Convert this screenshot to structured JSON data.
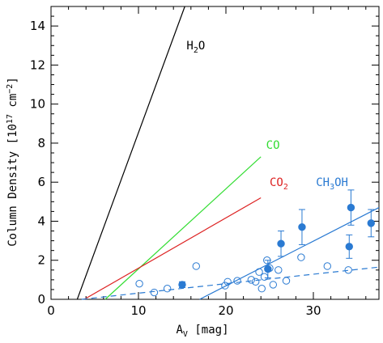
{
  "chart_data": {
    "type": "scatter",
    "xlabel": "A",
    "xlabel_sub": "V",
    "xlabel_unit": "[mag]",
    "ylabel": "Column Density [10",
    "ylabel_sup": "17",
    "ylabel_tail": " cm",
    "ylabel_sup2": "−2",
    "ylabel_close": "]",
    "xlim": [
      0,
      37.5
    ],
    "ylim": [
      0,
      15
    ],
    "x_ticks": [
      0,
      10,
      20,
      30
    ],
    "y_ticks": [
      0,
      2,
      4,
      6,
      8,
      10,
      12,
      14
    ],
    "grid": false,
    "colors": {
      "H2O": "#000000",
      "CO": "#33dd33",
      "CO2": "#dd2222",
      "CH3OH": "#2a7ad2"
    },
    "annotations": {
      "h2o": {
        "main": "H",
        "sub": "2",
        "tail": "O",
        "x": 15.5,
        "y": 12.8
      },
      "co": {
        "text": "CO",
        "x": 24.6,
        "y": 7.7
      },
      "co2": {
        "main": "CO",
        "sub": "2",
        "x": 25.0,
        "y": 5.8
      },
      "ch3oh": {
        "main": "CH",
        "sub": "3",
        "tail": "OH",
        "x": 30.3,
        "y": 5.8
      }
    },
    "lines": [
      {
        "name": "H2O",
        "style": "solid",
        "color": "#000000",
        "points": [
          [
            3.0,
            0
          ],
          [
            15.3,
            15
          ]
        ]
      },
      {
        "name": "CO",
        "style": "solid",
        "color": "#33dd33",
        "points": [
          [
            6.2,
            0
          ],
          [
            24.0,
            7.3
          ]
        ]
      },
      {
        "name": "CO2",
        "style": "solid",
        "color": "#dd2222",
        "points": [
          [
            3.8,
            0
          ],
          [
            24.0,
            5.2
          ]
        ]
      },
      {
        "name": "CH3OH-fit",
        "style": "solid",
        "color": "#2a7ad2",
        "points": [
          [
            17.0,
            0
          ],
          [
            37.5,
            4.7
          ]
        ]
      },
      {
        "name": "CH3OH-upper",
        "style": "dashed",
        "color": "#2a7ad2",
        "points": [
          [
            3.5,
            0
          ],
          [
            37.5,
            1.65
          ]
        ]
      }
    ],
    "detections": [
      {
        "x": 15.0,
        "y": 0.75,
        "err": 0.15
      },
      {
        "x": 24.8,
        "y": 1.55,
        "err": 0.45
      },
      {
        "x": 26.3,
        "y": 2.85,
        "err": 0.65
      },
      {
        "x": 28.7,
        "y": 3.7,
        "err": 0.9
      },
      {
        "x": 34.1,
        "y": 2.7,
        "err": 0.6
      },
      {
        "x": 34.3,
        "y": 4.7,
        "err": 0.9
      },
      {
        "x": 36.6,
        "y": 3.9,
        "err": 0.7
      }
    ],
    "upper_limits": [
      {
        "x": 10.1,
        "y": 0.8
      },
      {
        "x": 11.8,
        "y": 0.35
      },
      {
        "x": 13.3,
        "y": 0.55
      },
      {
        "x": 16.6,
        "y": 1.7
      },
      {
        "x": 19.9,
        "y": 0.7
      },
      {
        "x": 20.2,
        "y": 0.9
      },
      {
        "x": 21.3,
        "y": 0.95
      },
      {
        "x": 22.9,
        "y": 1.0
      },
      {
        "x": 23.4,
        "y": 0.9
      },
      {
        "x": 23.8,
        "y": 1.4
      },
      {
        "x": 24.1,
        "y": 0.55
      },
      {
        "x": 24.4,
        "y": 1.15
      },
      {
        "x": 24.7,
        "y": 2.0
      },
      {
        "x": 25.0,
        "y": 1.6
      },
      {
        "x": 25.4,
        "y": 0.75
      },
      {
        "x": 26.0,
        "y": 1.5
      },
      {
        "x": 26.9,
        "y": 0.95
      },
      {
        "x": 28.6,
        "y": 2.15
      },
      {
        "x": 31.6,
        "y": 1.7
      },
      {
        "x": 34.0,
        "y": 1.5
      }
    ]
  }
}
